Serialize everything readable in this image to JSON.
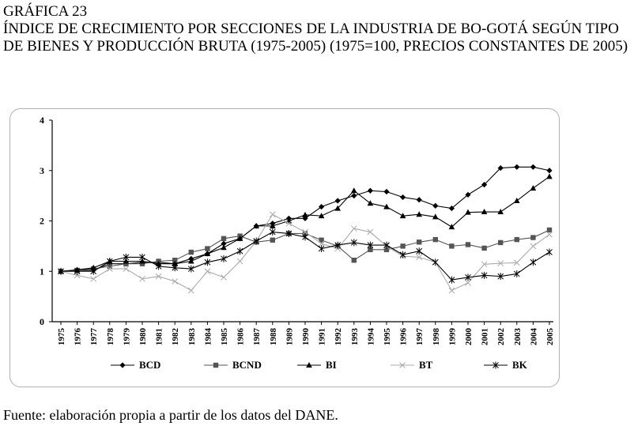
{
  "caption": {
    "label": "GRÁFICA 23",
    "title": "ÍNDICE DE CRECIMIENTO POR SECCIONES DE LA INDUSTRIA DE BO-GOTÁ SEGÚN TIPO DE BIENES Y PRODUCCIÓN BRUTA (1975-2005) (1975=100, PRECIOS CONSTANTES DE 2005)"
  },
  "source": "Fuente: elaboración propia a partir de los datos del DANE.",
  "chart_data": {
    "type": "line",
    "title": "",
    "xlabel": "",
    "ylabel": "",
    "ylim": [
      0,
      4
    ],
    "yticks": [
      "0",
      "1",
      "2",
      "3",
      "4"
    ],
    "grid": false,
    "legend_position": "bottom",
    "categories": [
      "1975",
      "1976",
      "1977",
      "1978",
      "1979",
      "1980",
      "1981",
      "1982",
      "1983",
      "1984",
      "1985",
      "1986",
      "1987",
      "1988",
      "1989",
      "1990",
      "1991",
      "1992",
      "1993",
      "1994",
      "1995",
      "1996",
      "1997",
      "1998",
      "1999",
      "2000",
      "2001",
      "2002",
      "2003",
      "2004",
      "2005"
    ],
    "series": [
      {
        "name": "BCD",
        "marker": "diamond",
        "color": "#000000",
        "values": [
          1.0,
          1.02,
          1.02,
          1.15,
          1.15,
          1.18,
          1.18,
          1.15,
          1.25,
          1.35,
          1.55,
          1.65,
          1.9,
          1.95,
          2.05,
          2.05,
          2.28,
          2.4,
          2.5,
          2.6,
          2.58,
          2.47,
          2.42,
          2.3,
          2.25,
          2.52,
          2.72,
          3.05,
          3.07,
          3.07,
          3.0
        ]
      },
      {
        "name": "BCND",
        "marker": "square",
        "color": "#555555",
        "values": [
          1.0,
          1.02,
          1.05,
          1.1,
          1.15,
          1.15,
          1.2,
          1.22,
          1.38,
          1.45,
          1.65,
          1.7,
          1.58,
          1.62,
          1.75,
          1.75,
          1.62,
          1.5,
          1.22,
          1.43,
          1.43,
          1.5,
          1.58,
          1.63,
          1.5,
          1.53,
          1.46,
          1.57,
          1.63,
          1.67,
          1.82
        ]
      },
      {
        "name": "BI",
        "marker": "triangle",
        "color": "#000000",
        "values": [
          1.0,
          1.03,
          1.07,
          1.2,
          1.2,
          1.2,
          1.15,
          1.15,
          1.2,
          1.35,
          1.47,
          1.65,
          1.9,
          1.9,
          2.0,
          2.12,
          2.1,
          2.25,
          2.6,
          2.35,
          2.28,
          2.1,
          2.13,
          2.08,
          1.88,
          2.17,
          2.18,
          2.18,
          2.4,
          2.65,
          2.88
        ]
      },
      {
        "name": "BT",
        "marker": "x",
        "color": "#aaaaaa",
        "values": [
          1.0,
          0.92,
          0.85,
          1.05,
          1.05,
          0.85,
          0.9,
          0.8,
          0.62,
          1.0,
          0.88,
          1.2,
          1.6,
          2.13,
          1.95,
          1.78,
          1.55,
          1.45,
          1.85,
          1.78,
          1.5,
          1.3,
          1.28,
          1.18,
          0.62,
          0.77,
          1.14,
          1.16,
          1.17,
          1.5,
          1.73
        ]
      },
      {
        "name": "BK",
        "marker": "star",
        "color": "#000000",
        "values": [
          1.0,
          1.0,
          1.0,
          1.2,
          1.28,
          1.28,
          1.1,
          1.07,
          1.05,
          1.18,
          1.25,
          1.4,
          1.6,
          1.78,
          1.75,
          1.68,
          1.45,
          1.52,
          1.57,
          1.52,
          1.52,
          1.33,
          1.4,
          1.18,
          0.83,
          0.88,
          0.92,
          0.9,
          0.95,
          1.18,
          1.38
        ]
      }
    ]
  }
}
